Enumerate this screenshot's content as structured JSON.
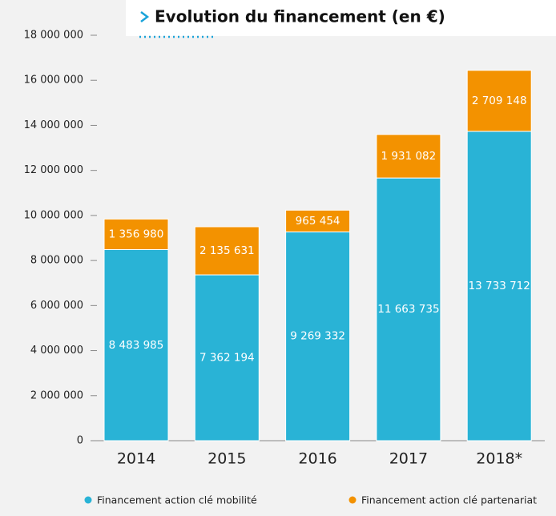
{
  "chart_data": {
    "type": "stacked_bar",
    "title": "Evolution du financement (en €)",
    "categories": [
      "2014",
      "2015",
      "2016",
      "2017",
      "2018*"
    ],
    "series": [
      {
        "name": "Financement action clé mobilité",
        "color": "#29b3d6",
        "values": [
          8483985,
          7362194,
          9269332,
          11663735,
          13733712
        ],
        "value_labels": [
          "8 483 985",
          "7 362 194",
          "9 269 332",
          "11 663 735",
          "13 733 712"
        ]
      },
      {
        "name": "Financement action clé partenariat",
        "color": "#f39200",
        "values": [
          1356980,
          2135631,
          965454,
          1931082,
          2709148
        ],
        "value_labels": [
          "1 356 980",
          "2 135 631",
          "965 454",
          "1 931 082",
          "2 709 148"
        ]
      }
    ],
    "ylim": [
      0,
      18000000
    ],
    "yticks": [
      0,
      {
        "value": 2000000,
        "label": "2 000 000"
      },
      {
        "value": 4000000,
        "label": "4 000 000"
      },
      {
        "value": 6000000,
        "label": "6 000 000"
      },
      {
        "value": 8000000,
        "label": "8 000 000"
      },
      {
        "value": 10000000,
        "label": "10 000 000"
      },
      {
        "value": 12000000,
        "label": "12 000 000"
      },
      {
        "value": 14000000,
        "label": "14 000 000"
      },
      {
        "value": 16000000,
        "label": "16 000 000"
      },
      {
        "value": 18000000,
        "label": "18 000 000"
      }
    ],
    "legend": "bottom"
  }
}
